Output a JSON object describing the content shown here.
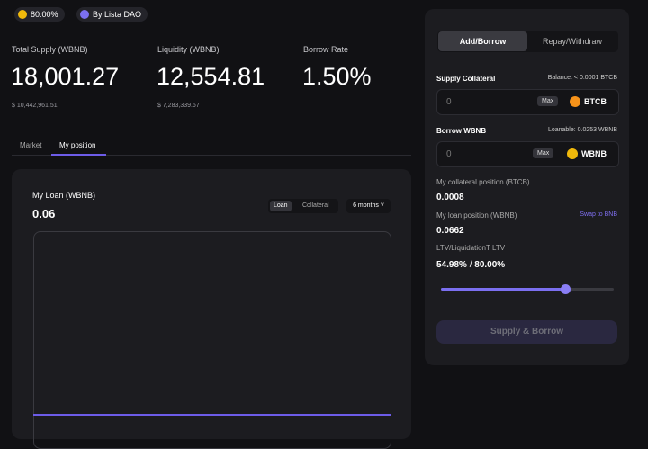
{
  "header": {
    "badges": [
      "80.00%",
      "By Lista DAO"
    ]
  },
  "stats": [
    {
      "label": "Total Supply (WBNB)",
      "value": "18,001.27",
      "sub": "$ 10,442,961.51"
    },
    {
      "label": "Liquidity (WBNB)",
      "value": "12,554.81",
      "sub": "$ 7,283,339.67"
    },
    {
      "label": "Borrow Rate",
      "value": "1.50%"
    }
  ],
  "tabs": [
    "Market",
    "My position"
  ],
  "loan": {
    "title": "My Loan (WBNB)",
    "value": "0.06",
    "toggle": [
      "Loan",
      "Collateral"
    ],
    "period": "6 months"
  },
  "panel": {
    "tabs": [
      "Add/Borrow",
      "Repay/Withdraw"
    ],
    "supply": {
      "label": "Supply Collateral",
      "balance": "Balance: < 0.0001 BTCB",
      "placeholder": "0",
      "max": "Max",
      "token": "BTCB"
    },
    "borrow": {
      "label": "Borrow WBNB",
      "loanable": "Loanable: 0.0253 WBNB",
      "placeholder": "0",
      "max": "Max",
      "token": "WBNB"
    },
    "collateral_label": "My collateral position (BTCB)",
    "collateral_value": "0.0008",
    "loan_label": "My loan position (WBNB)",
    "swap": "Swap to BNB",
    "loan_value": "0.0662",
    "ltv_label": "LTV/LiquidationT LTV",
    "ltv_value": "54.98%",
    "ltv_sep": "/",
    "ltv_limit": "80.00%",
    "button": "Supply & Borrow"
  }
}
